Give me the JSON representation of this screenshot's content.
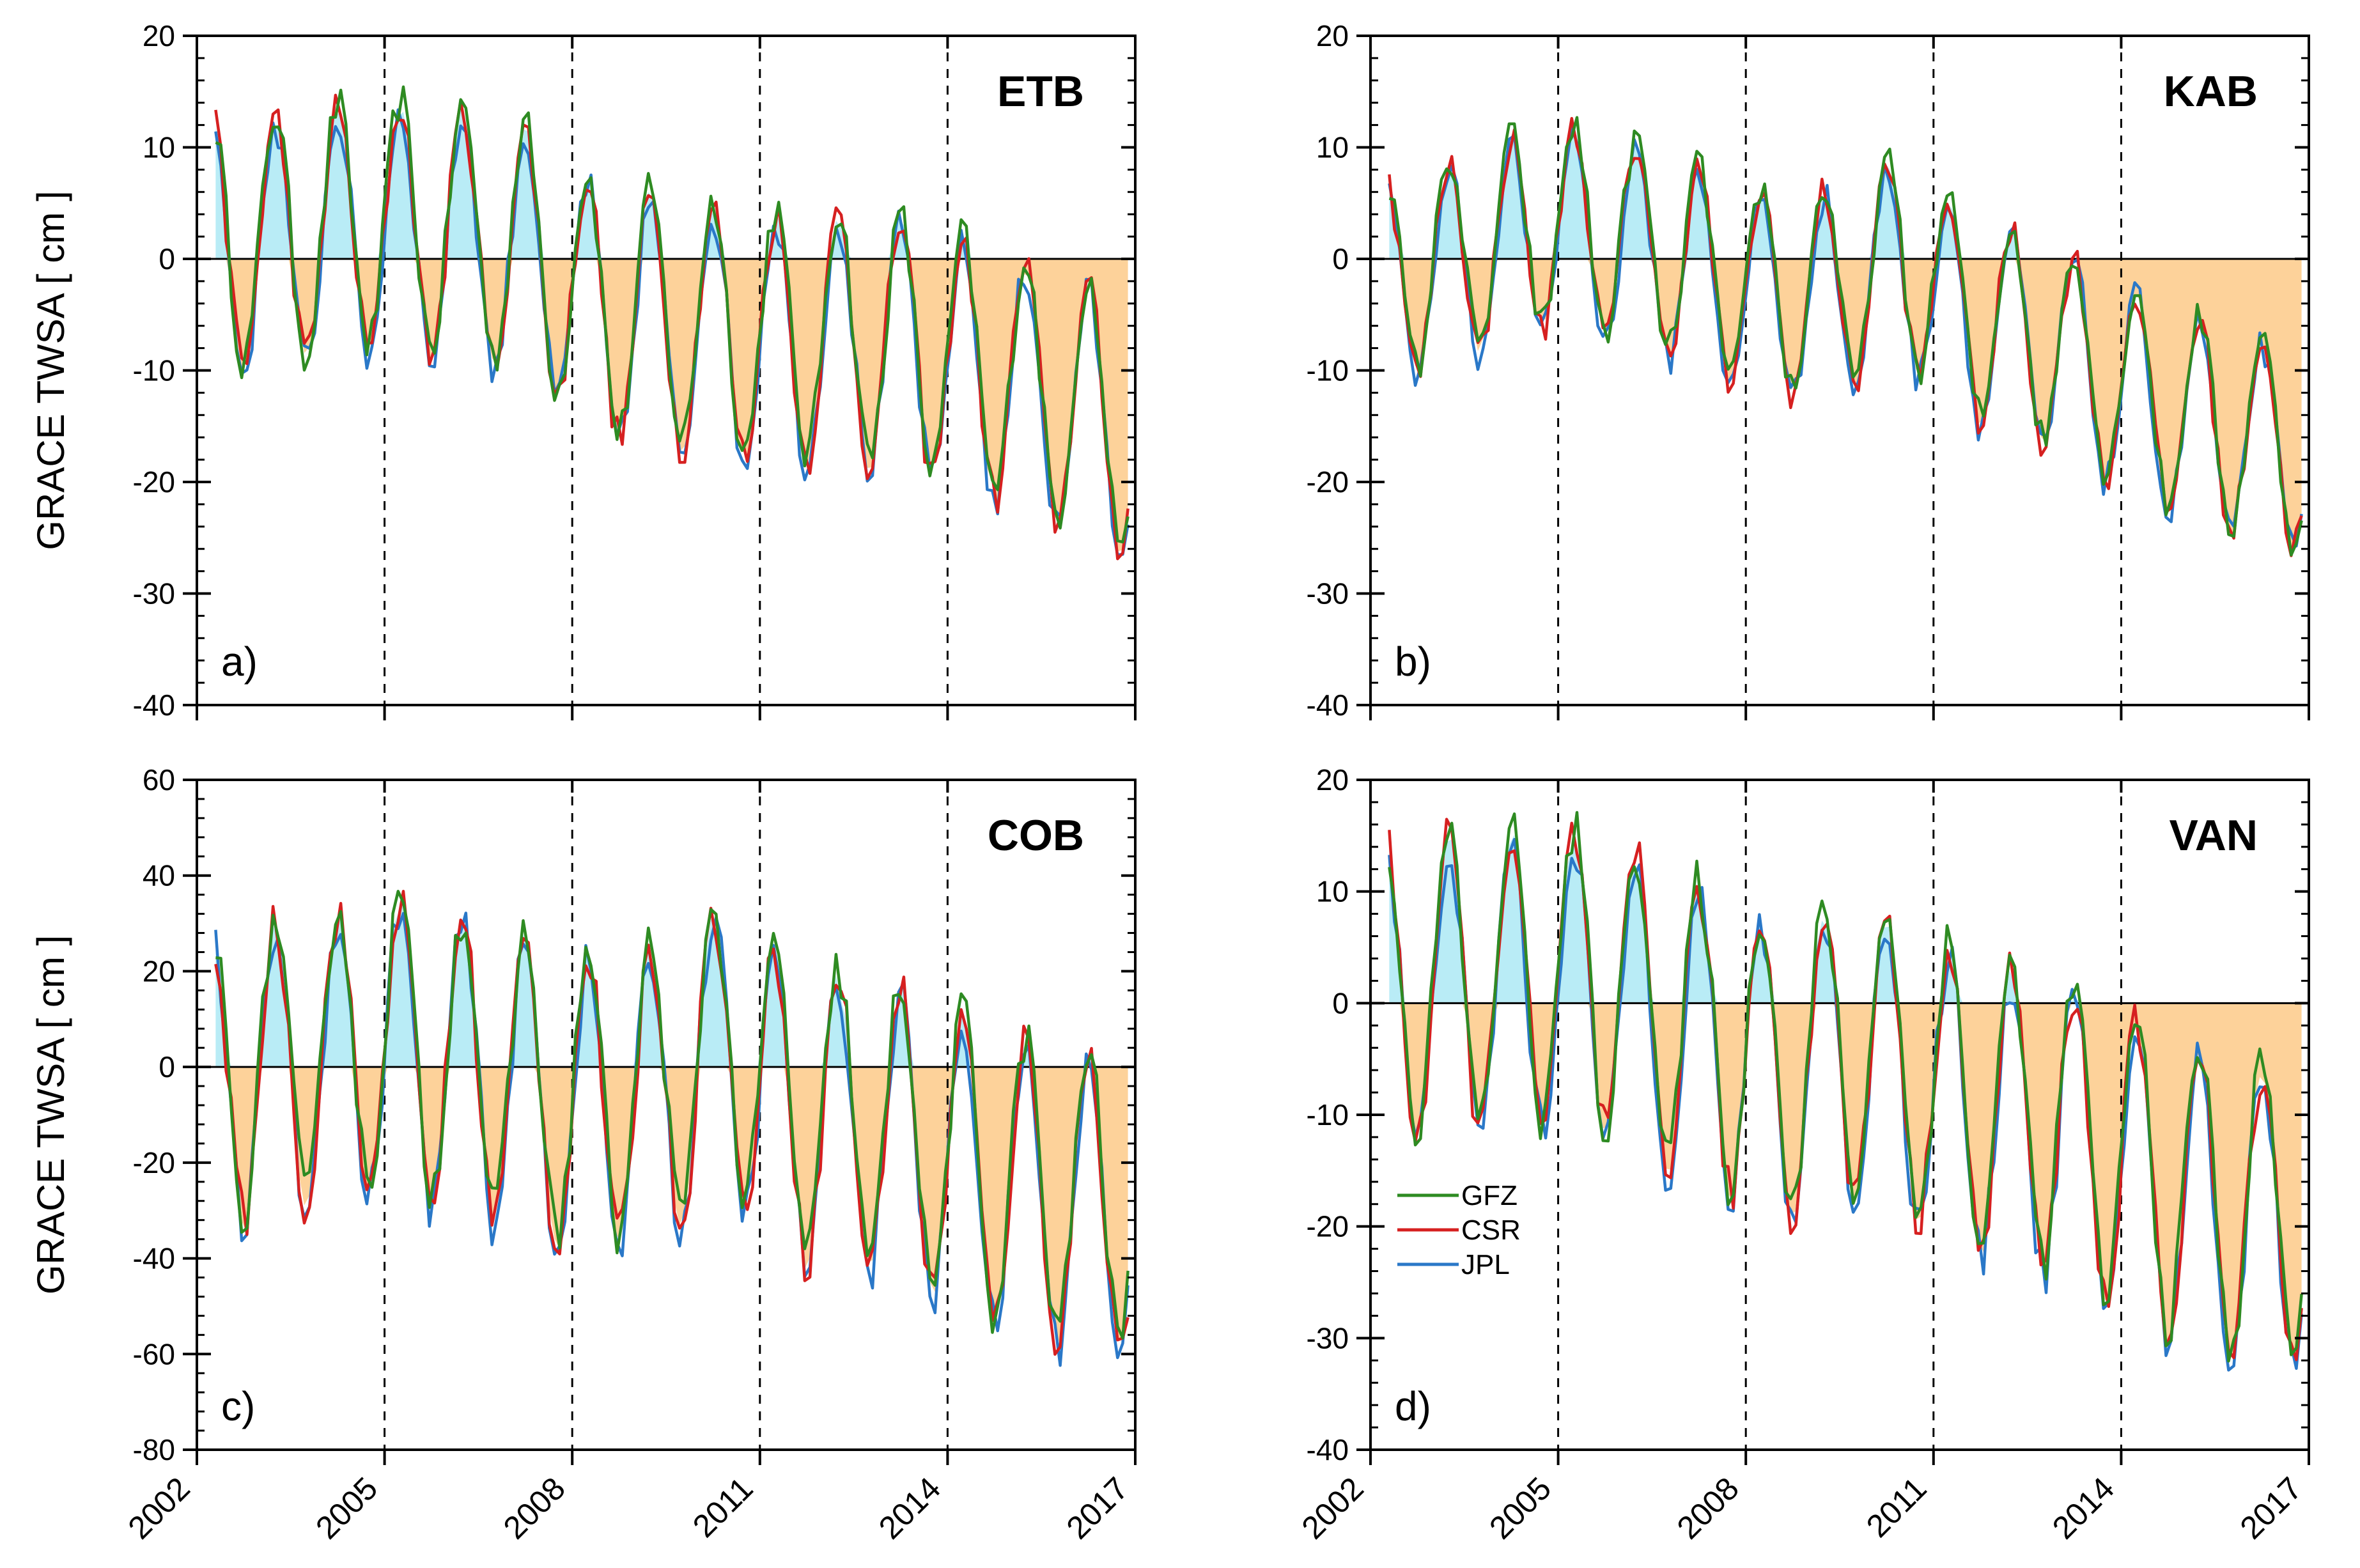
{
  "figure": {
    "ylabel": "GRACE TWSA [ cm ]",
    "x_ticks": [
      "2002",
      "2005",
      "2008",
      "2011",
      "2014",
      "2017"
    ],
    "series_colors": {
      "GFZ": "#2e8b22",
      "CSR": "#d62020",
      "JPL": "#2a78c8"
    },
    "fill_colors": {
      "positive": "#b9ecf6",
      "negative": "#fdd29a"
    },
    "legend": [
      "GFZ",
      "CSR",
      "JPL"
    ]
  },
  "chart_data": [
    {
      "type": "line",
      "panel_label": "a)",
      "name": "ETB",
      "xlim": [
        2002,
        2017
      ],
      "ylim": [
        -40,
        20
      ],
      "yticks": [
        "20",
        "10",
        "0",
        "-10",
        "-20",
        "-30",
        "-40"
      ],
      "amplitude": 11,
      "baseline": [
        [
          2002.3,
          1
        ],
        [
          2005.0,
          3
        ],
        [
          2006.5,
          2
        ],
        [
          2007.5,
          0
        ],
        [
          2008.5,
          -5
        ],
        [
          2010.0,
          -6
        ],
        [
          2011.0,
          -7
        ],
        [
          2012.5,
          -7
        ],
        [
          2013.5,
          -8
        ],
        [
          2014.5,
          -10
        ],
        [
          2016.0,
          -13
        ],
        [
          2017.0,
          -15
        ]
      ],
      "series": [
        {
          "name": "GFZ",
          "x": [
            2002.3,
            2016.9
          ]
        },
        {
          "name": "CSR",
          "x": [
            2002.3,
            2016.9
          ]
        },
        {
          "name": "JPL",
          "x": [
            2002.3,
            2016.9
          ]
        }
      ]
    },
    {
      "type": "line",
      "panel_label": "b)",
      "name": "KAB",
      "xlim": [
        2002,
        2017
      ],
      "ylim": [
        -40,
        20
      ],
      "yticks": [
        "20",
        "10",
        "0",
        "-10",
        "-20",
        "-30",
        "-40"
      ],
      "amplitude": 9,
      "baseline": [
        [
          2002.3,
          -2
        ],
        [
          2005.0,
          3
        ],
        [
          2006.5,
          1
        ],
        [
          2008.0,
          -3
        ],
        [
          2009.5,
          -3
        ],
        [
          2010.5,
          0
        ],
        [
          2011.5,
          -5
        ],
        [
          2013.0,
          -8
        ],
        [
          2014.5,
          -13
        ],
        [
          2016.0,
          -16
        ],
        [
          2017.0,
          -17
        ]
      ],
      "series": [
        {
          "name": "GFZ",
          "x": [
            2002.3,
            2016.9
          ]
        },
        {
          "name": "CSR",
          "x": [
            2002.3,
            2016.9
          ]
        },
        {
          "name": "JPL",
          "x": [
            2002.3,
            2016.9
          ]
        }
      ]
    },
    {
      "type": "line",
      "panel_label": "c)",
      "name": "COB",
      "xlim": [
        2002,
        2017
      ],
      "ylim": [
        -80,
        60
      ],
      "yticks": [
        "60",
        "40",
        "20",
        "0",
        "-20",
        "-40",
        "-60",
        "-80"
      ],
      "amplitude": 30,
      "baseline": [
        [
          2002.3,
          -3
        ],
        [
          2005.0,
          5
        ],
        [
          2006.5,
          0
        ],
        [
          2008.0,
          -8
        ],
        [
          2009.5,
          -5
        ],
        [
          2010.5,
          5
        ],
        [
          2011.5,
          -10
        ],
        [
          2013.0,
          -12
        ],
        [
          2014.5,
          -22
        ],
        [
          2016.0,
          -28
        ],
        [
          2017.0,
          -28
        ]
      ],
      "series": [
        {
          "name": "GFZ",
          "x": [
            2002.3,
            2016.9
          ]
        },
        {
          "name": "CSR",
          "x": [
            2002.3,
            2016.9
          ]
        },
        {
          "name": "JPL",
          "x": [
            2002.3,
            2016.9
          ]
        }
      ]
    },
    {
      "type": "line",
      "panel_label": "d)",
      "name": "VAN",
      "xlim": [
        2002,
        2017
      ],
      "ylim": [
        -40,
        20
      ],
      "yticks": [
        "20",
        "10",
        "0",
        "-10",
        "-20",
        "-30",
        "-40"
      ],
      "amplitude": 13,
      "baseline": [
        [
          2002.3,
          1
        ],
        [
          2004.0,
          2
        ],
        [
          2005.5,
          2
        ],
        [
          2007.0,
          -2
        ],
        [
          2008.5,
          -6
        ],
        [
          2010.0,
          -4
        ],
        [
          2011.5,
          -9
        ],
        [
          2013.0,
          -11
        ],
        [
          2014.5,
          -16
        ],
        [
          2016.0,
          -19
        ],
        [
          2017.0,
          -18
        ]
      ],
      "series": [
        {
          "name": "GFZ",
          "x": [
            2002.3,
            2016.9
          ]
        },
        {
          "name": "CSR",
          "x": [
            2002.3,
            2016.9
          ]
        },
        {
          "name": "JPL",
          "x": [
            2002.3,
            2016.9
          ]
        }
      ]
    }
  ]
}
